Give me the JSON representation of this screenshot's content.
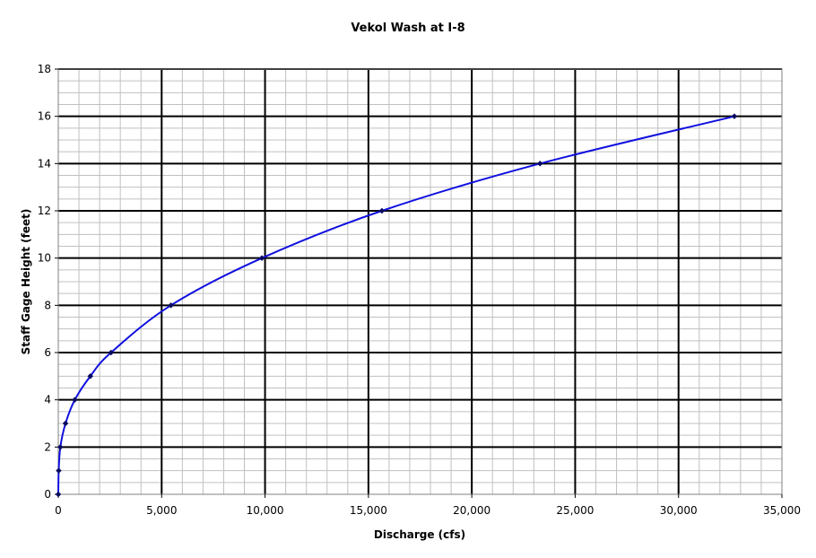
{
  "chart_data": {
    "type": "line",
    "title": "Vekol Wash at I-8",
    "xlabel": "Discharge (cfs)",
    "ylabel": "Staff Gage Height (feet)",
    "xlim": [
      0,
      35000
    ],
    "ylim": [
      0,
      18
    ],
    "x_major_ticks": [
      0,
      5000,
      10000,
      15000,
      20000,
      25000,
      30000,
      35000
    ],
    "x_tick_labels": [
      "0",
      "5,000",
      "10,000",
      "15,000",
      "20,000",
      "25,000",
      "30,000",
      "35,000"
    ],
    "y_major_ticks": [
      0,
      2,
      4,
      6,
      8,
      10,
      12,
      14,
      16,
      18
    ],
    "y_tick_labels": [
      "0",
      "2",
      "4",
      "6",
      "8",
      "10",
      "12",
      "14",
      "16",
      "18"
    ],
    "x_minor_step": 1000,
    "y_minor_step": 0.5,
    "grid": true,
    "legend": "none",
    "colors": {
      "line": "#1010e0",
      "marker": "#0a0a60",
      "major_grid": "#000000",
      "minor_grid": "#c0c0c0"
    },
    "series": [
      {
        "x": [
          0,
          20,
          100,
          350,
          800,
          1550,
          2550,
          5450,
          9850,
          15650,
          23300,
          32700
        ],
        "y": [
          0,
          1,
          2,
          3,
          4,
          5,
          6,
          8,
          10,
          12,
          14,
          16
        ]
      }
    ]
  }
}
